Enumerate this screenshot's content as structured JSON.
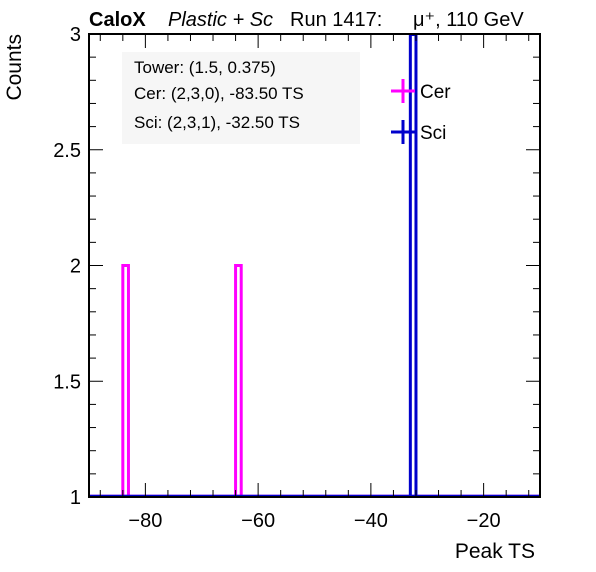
{
  "header": {
    "brand": "CaloX",
    "material": "Plastic + Sc",
    "run": "Run 1417:",
    "beam": "μ⁺, 110 GeV"
  },
  "info_box": {
    "tower": "Tower: (1.5, 0.375)",
    "cer": "Cer: (2,3,0), -83.50 TS",
    "sci": "Sci: (2,3,1), -32.50 TS"
  },
  "chart_data": {
    "type": "histogram",
    "xlabel": "Peak TS",
    "ylabel": "Counts",
    "xlim": [
      -90,
      -10
    ],
    "ylim": [
      1,
      3
    ],
    "x_ticks": [
      -80,
      -60,
      -40,
      -20
    ],
    "x_tick_labels": [
      "−80",
      "−60",
      "−40",
      "−20"
    ],
    "y_ticks": [
      1,
      1.5,
      2,
      2.5,
      3
    ],
    "y_tick_labels": [
      "1",
      "1.5",
      "2",
      "2.5",
      "3"
    ],
    "bin_width": 1,
    "legend_position": "top-right",
    "grid": false,
    "series": [
      {
        "name": "Cer",
        "color": "#ff00ff",
        "bins": [
          {
            "x_low": -84,
            "x_high": -83,
            "count": 2
          },
          {
            "x_low": -64,
            "x_high": -63,
            "count": 2
          }
        ]
      },
      {
        "name": "Sci",
        "color": "#0000cc",
        "bins": [
          {
            "x_low": -33,
            "x_high": -32,
            "count": 3
          }
        ]
      }
    ]
  }
}
